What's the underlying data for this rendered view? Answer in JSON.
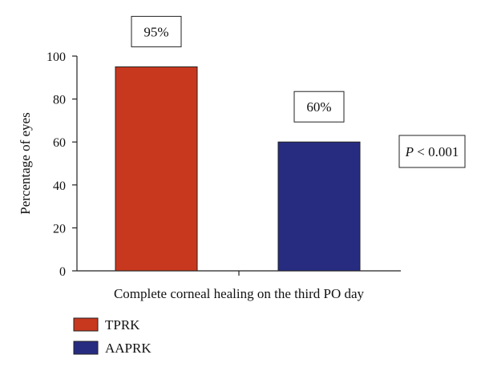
{
  "chart_data": {
    "type": "bar",
    "categories": [
      "TPRK",
      "AAPRK"
    ],
    "values": [
      95,
      60
    ],
    "value_labels": [
      "95%",
      "60%"
    ],
    "colors": [
      "#C8381F",
      "#272C81"
    ],
    "ylabel": "Percentage of eyes",
    "xlabel": "Complete corneal healing on the third PO day",
    "ylim": [
      0,
      100
    ],
    "yticks": [
      0,
      20,
      40,
      60,
      80,
      100
    ],
    "grid": false,
    "legend_position": "bottom-left",
    "annotation": {
      "p_symbol": "P",
      "p_rest": " < 0.001"
    }
  }
}
